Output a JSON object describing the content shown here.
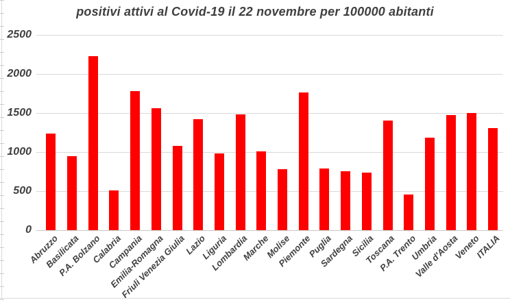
{
  "chart_data": {
    "type": "bar",
    "title": "positivi attivi al Covid-19 il 22 novembre per 100000 abitanti",
    "categories": [
      "Abruzzo",
      "Basilicata",
      "P.A. Bolzano",
      "Calabria",
      "Campania",
      "Emilia-Romagna",
      "Friuli Venezia Giulia",
      "Lazio",
      "Liguria",
      "Lombardia",
      "Marche",
      "Molise",
      "Piemonte",
      "Puglia",
      "Sardegna",
      "Sicilia",
      "Toscana",
      "P.A. Trento",
      "Umbria",
      "Valle d'Aosta",
      "Veneto",
      "ITALIA"
    ],
    "values": [
      1240,
      950,
      2230,
      510,
      1780,
      1560,
      1080,
      1420,
      980,
      1480,
      1010,
      780,
      1760,
      790,
      750,
      740,
      1400,
      460,
      1180,
      1470,
      1500,
      1310
    ],
    "xlabel": "",
    "ylabel": "",
    "ylim": [
      0,
      2500
    ],
    "ytick_step": 500,
    "ytick_labels": [
      "0",
      "500",
      "1000",
      "1500",
      "2000",
      "2500"
    ],
    "grid": true,
    "legend": false,
    "x_label_rotation_deg": 45,
    "bar_color": "#ff0000",
    "text_color": "#404040",
    "grid_color": "#d9d9d9",
    "background": "#ffffff"
  }
}
